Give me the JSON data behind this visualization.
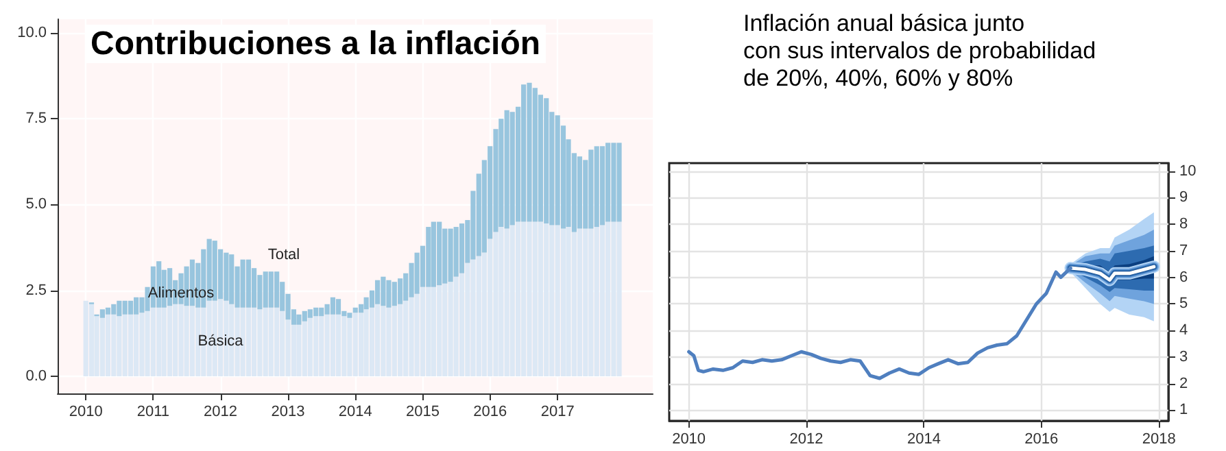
{
  "chart_data": [
    {
      "type": "bar",
      "title": "Contribuciones a la inflación",
      "stacked": true,
      "grid": true,
      "x": [
        "2010-01",
        "2010-02",
        "2010-03",
        "2010-04",
        "2010-05",
        "2010-06",
        "2010-07",
        "2010-08",
        "2010-09",
        "2010-10",
        "2010-11",
        "2010-12",
        "2011-01",
        "2011-02",
        "2011-03",
        "2011-04",
        "2011-05",
        "2011-06",
        "2011-07",
        "2011-08",
        "2011-09",
        "2011-10",
        "2011-11",
        "2011-12",
        "2012-01",
        "2012-02",
        "2012-03",
        "2012-04",
        "2012-05",
        "2012-06",
        "2012-07",
        "2012-08",
        "2012-09",
        "2012-10",
        "2012-11",
        "2012-12",
        "2013-01",
        "2013-02",
        "2013-03",
        "2013-04",
        "2013-05",
        "2013-06",
        "2013-07",
        "2013-08",
        "2013-09",
        "2013-10",
        "2013-11",
        "2013-12",
        "2014-01",
        "2014-02",
        "2014-03",
        "2014-04",
        "2014-05",
        "2014-06",
        "2014-07",
        "2014-08",
        "2014-09",
        "2014-10",
        "2014-11",
        "2014-12",
        "2015-01",
        "2015-02",
        "2015-03",
        "2015-04",
        "2015-05",
        "2015-06",
        "2015-07",
        "2015-08",
        "2015-09",
        "2015-10",
        "2015-11",
        "2015-12",
        "2016-01",
        "2016-02",
        "2016-03",
        "2016-04",
        "2016-05",
        "2016-06",
        "2016-07",
        "2016-08",
        "2016-09",
        "2016-10",
        "2016-11",
        "2016-12",
        "2017-01",
        "2017-02",
        "2017-03",
        "2017-04",
        "2017-05",
        "2017-06",
        "2017-07",
        "2017-08",
        "2017-09",
        "2017-10",
        "2017-11",
        "2017-12"
      ],
      "series": [
        {
          "name": "Básica",
          "color": "#dce8f5",
          "values": [
            2.2,
            2.1,
            1.75,
            1.7,
            1.8,
            1.8,
            1.75,
            1.8,
            1.8,
            1.8,
            1.85,
            1.9,
            2.0,
            2.0,
            2.0,
            2.05,
            2.1,
            2.1,
            2.05,
            2.05,
            2.0,
            2.0,
            2.2,
            2.2,
            2.25,
            2.2,
            2.1,
            2.0,
            2.0,
            2.0,
            2.0,
            1.95,
            2.0,
            2.0,
            2.0,
            1.9,
            1.65,
            1.5,
            1.5,
            1.6,
            1.7,
            1.75,
            1.75,
            1.8,
            1.8,
            1.8,
            1.75,
            1.7,
            1.85,
            1.85,
            1.95,
            2.0,
            2.1,
            2.05,
            2.0,
            2.05,
            2.1,
            2.2,
            2.3,
            2.4,
            2.6,
            2.6,
            2.6,
            2.65,
            2.7,
            2.75,
            2.9,
            3.0,
            3.3,
            3.4,
            3.5,
            3.6,
            4.0,
            4.2,
            4.35,
            4.3,
            4.4,
            4.5,
            4.5,
            4.5,
            4.5,
            4.5,
            4.45,
            4.4,
            4.4,
            4.3,
            4.35,
            4.2,
            4.3,
            4.3,
            4.3,
            4.35,
            4.4,
            4.5,
            4.5,
            4.5
          ]
        },
        {
          "name": "Alimentos",
          "color": "#98c5de",
          "values": [
            0,
            0.05,
            0.05,
            0.25,
            0.2,
            0.3,
            0.45,
            0.4,
            0.4,
            0.5,
            0.45,
            0.7,
            1.2,
            1.35,
            1.1,
            1.1,
            0.7,
            0.9,
            1.15,
            1.35,
            1.3,
            1.7,
            1.8,
            1.75,
            1.45,
            1.4,
            1.45,
            1.2,
            1.4,
            1.4,
            1.15,
            1.0,
            1.05,
            1.05,
            1.05,
            0.85,
            0.75,
            0.45,
            0.3,
            0.3,
            0.25,
            0.25,
            0.25,
            0.3,
            0.5,
            0.45,
            0.15,
            0.15,
            0.15,
            0.25,
            0.35,
            0.5,
            0.7,
            0.85,
            0.8,
            0.7,
            0.75,
            0.8,
            1.0,
            1.2,
            1.2,
            1.75,
            1.9,
            1.85,
            1.6,
            1.55,
            1.45,
            1.45,
            1.25,
            2.0,
            2.4,
            2.7,
            2.7,
            3.0,
            3.15,
            3.45,
            3.3,
            3.35,
            4.0,
            4.05,
            3.9,
            3.7,
            3.65,
            3.3,
            3.2,
            3.0,
            2.55,
            2.3,
            2.1,
            2.0,
            2.3,
            2.35,
            2.3,
            2.3,
            2.3,
            2.3
          ]
        }
      ],
      "annotations": [
        "Total"
      ],
      "xlim": [
        "2009-08",
        "2018-06"
      ],
      "xticks": [
        "2010",
        "2011",
        "2012",
        "2013",
        "2014",
        "2015",
        "2016",
        "2017"
      ],
      "ylim": [
        -0.5,
        10.4
      ],
      "yticks": [
        {
          "value": 0,
          "label": "0.0"
        },
        {
          "value": 2.5,
          "label": "2.5"
        },
        {
          "value": 5,
          "label": "5.0"
        },
        {
          "value": 7.5,
          "label": "7.5"
        },
        {
          "value": 10,
          "label": "10.0"
        }
      ]
    },
    {
      "type": "line",
      "title": "Inflación anual básica junto\ncon sus intervalos de probabilidad\nde 20%, 40%, 60% y 80%",
      "grid": true,
      "marker": "none",
      "line_style": "solid",
      "x": [
        "2010-01",
        "2010-02",
        "2010-03",
        "2010-04",
        "2010-06",
        "2010-08",
        "2010-10",
        "2010-12",
        "2011-02",
        "2011-04",
        "2011-06",
        "2011-08",
        "2011-10",
        "2011-12",
        "2012-02",
        "2012-04",
        "2012-06",
        "2012-08",
        "2012-10",
        "2012-12",
        "2013-02",
        "2013-04",
        "2013-06",
        "2013-08",
        "2013-10",
        "2013-12",
        "2014-02",
        "2014-04",
        "2014-06",
        "2014-08",
        "2014-10",
        "2014-12",
        "2015-02",
        "2015-04",
        "2015-06",
        "2015-08",
        "2015-10",
        "2015-12",
        "2016-02",
        "2016-04",
        "2016-05",
        "2016-07"
      ],
      "series": [
        {
          "color": "#b3d4f5",
          "x": [
            "2016-07",
            "2016-10",
            "2017-01",
            "2017-03",
            "2017-04",
            "2017-07",
            "2017-10",
            "2017-12"
          ],
          "values": [
            6.35,
            6.3,
            6.15,
            5.9,
            6.15,
            6.15,
            6.3,
            6.4
          ],
          "lower": [
            6.2,
            5.6,
            5.0,
            4.7,
            4.85,
            4.6,
            4.5,
            4.35
          ],
          "upper": [
            6.5,
            6.9,
            7.1,
            7.1,
            7.5,
            7.8,
            8.2,
            8.45
          ]
        },
        {
          "color": "#6fa3dd",
          "x": [
            "2016-07",
            "2016-10",
            "2017-01",
            "2017-03",
            "2017-04",
            "2017-07",
            "2017-10",
            "2017-12"
          ],
          "values": [
            6.35,
            6.3,
            6.15,
            5.9,
            6.15,
            6.15,
            6.3,
            6.4
          ],
          "lower": [
            6.25,
            5.8,
            5.4,
            5.1,
            5.3,
            5.2,
            5.1,
            5.0
          ],
          "upper": [
            6.45,
            6.8,
            6.9,
            6.9,
            7.2,
            7.4,
            7.6,
            7.8
          ]
        },
        {
          "color": "#2d6bb0",
          "x": [
            "2016-07",
            "2016-10",
            "2017-01",
            "2017-03",
            "2017-04",
            "2017-07",
            "2017-10",
            "2017-12"
          ],
          "values": [
            6.35,
            6.3,
            6.15,
            5.9,
            6.15,
            6.15,
            6.3,
            6.4
          ],
          "lower": [
            6.28,
            6.0,
            5.7,
            5.45,
            5.6,
            5.55,
            5.5,
            5.5
          ],
          "upper": [
            6.42,
            6.6,
            6.7,
            6.6,
            6.9,
            7.0,
            7.1,
            7.2
          ]
        },
        {
          "color": "#0b3f80",
          "x": [
            "2016-07",
            "2016-10",
            "2017-01",
            "2017-03",
            "2017-04",
            "2017-07",
            "2017-10",
            "2017-12"
          ],
          "values": [
            6.35,
            6.3,
            6.15,
            5.9,
            6.15,
            6.15,
            6.3,
            6.4
          ],
          "lower": [
            6.3,
            6.15,
            5.9,
            5.7,
            5.9,
            5.9,
            5.95,
            5.95
          ],
          "upper": [
            6.4,
            6.45,
            6.45,
            6.2,
            6.45,
            6.5,
            6.65,
            6.8
          ]
        },
        {
          "color": "#ffffff",
          "x": [
            "2016-07",
            "2016-10",
            "2017-01",
            "2017-03",
            "2017-04",
            "2017-07",
            "2017-10",
            "2017-12"
          ],
          "values": [
            6.35,
            6.3,
            6.15,
            5.9,
            6.15,
            6.15,
            6.3,
            6.4
          ]
        },
        {
          "color": "#4f7fbf",
          "values": [
            3.2,
            3.05,
            2.5,
            2.45,
            2.55,
            2.5,
            2.6,
            2.85,
            2.8,
            2.9,
            2.85,
            2.9,
            3.05,
            3.2,
            3.1,
            2.95,
            2.85,
            2.8,
            2.9,
            2.85,
            2.3,
            2.2,
            2.4,
            2.55,
            2.4,
            2.35,
            2.6,
            2.75,
            2.9,
            2.75,
            2.8,
            3.15,
            3.35,
            3.45,
            3.5,
            3.8,
            4.4,
            5.0,
            5.4,
            6.2,
            6.0,
            6.35
          ]
        }
      ],
      "xlim": [
        "2009-09",
        "2018-03"
      ],
      "xticks": [
        "2010",
        "2012",
        "2014",
        "2016",
        "2018"
      ],
      "ylim": [
        0.6,
        10.3
      ],
      "yticks": [
        1,
        2,
        3,
        4,
        5,
        6,
        7,
        8,
        9,
        10
      ]
    }
  ]
}
